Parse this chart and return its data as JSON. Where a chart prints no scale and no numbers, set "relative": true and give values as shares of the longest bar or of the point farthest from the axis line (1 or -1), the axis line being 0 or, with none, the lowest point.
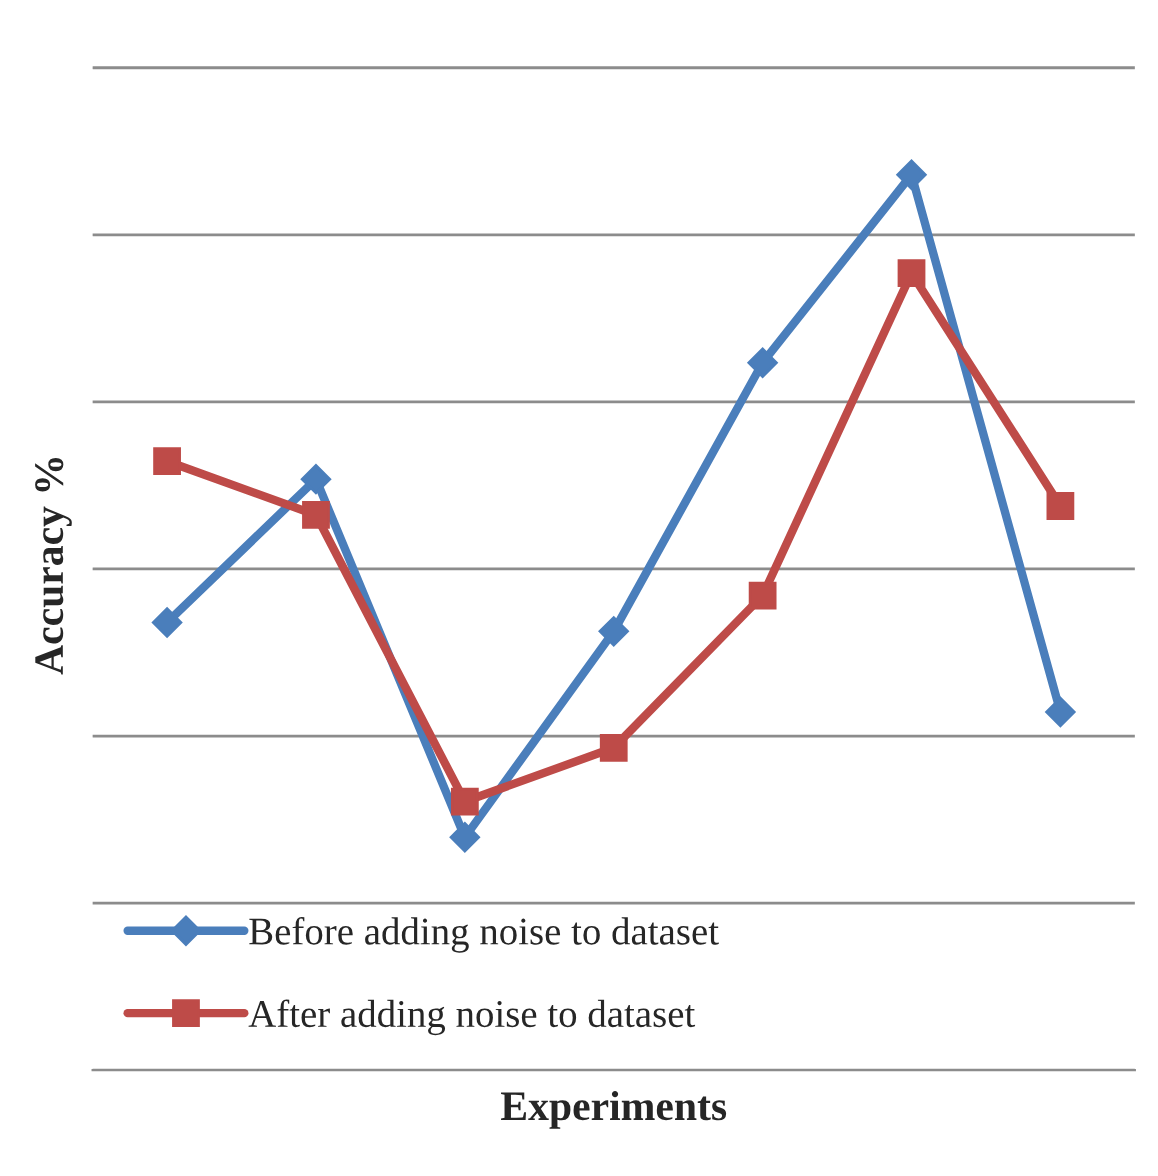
{
  "chart_data": {
    "type": "line",
    "xlabel": "Experiments",
    "ylabel": "Accuracy %",
    "relative": true,
    "categories": [
      null,
      null,
      null,
      null,
      null,
      null,
      null
    ],
    "series": [
      {
        "name": "Before adding noise to dataset",
        "color": "#4a7ebb",
        "marker": "diamond",
        "values": [
          0.5,
          0.66,
          0.26,
          0.49,
          0.79,
          1,
          0.4
        ]
      },
      {
        "name": "After adding noise to dataset",
        "color": "#be4b48",
        "marker": "square",
        "values": [
          0.68,
          0.62,
          0.3,
          0.36,
          0.53,
          0.89,
          0.63
        ]
      }
    ],
    "grid": "y",
    "legend": "bottom left"
  }
}
